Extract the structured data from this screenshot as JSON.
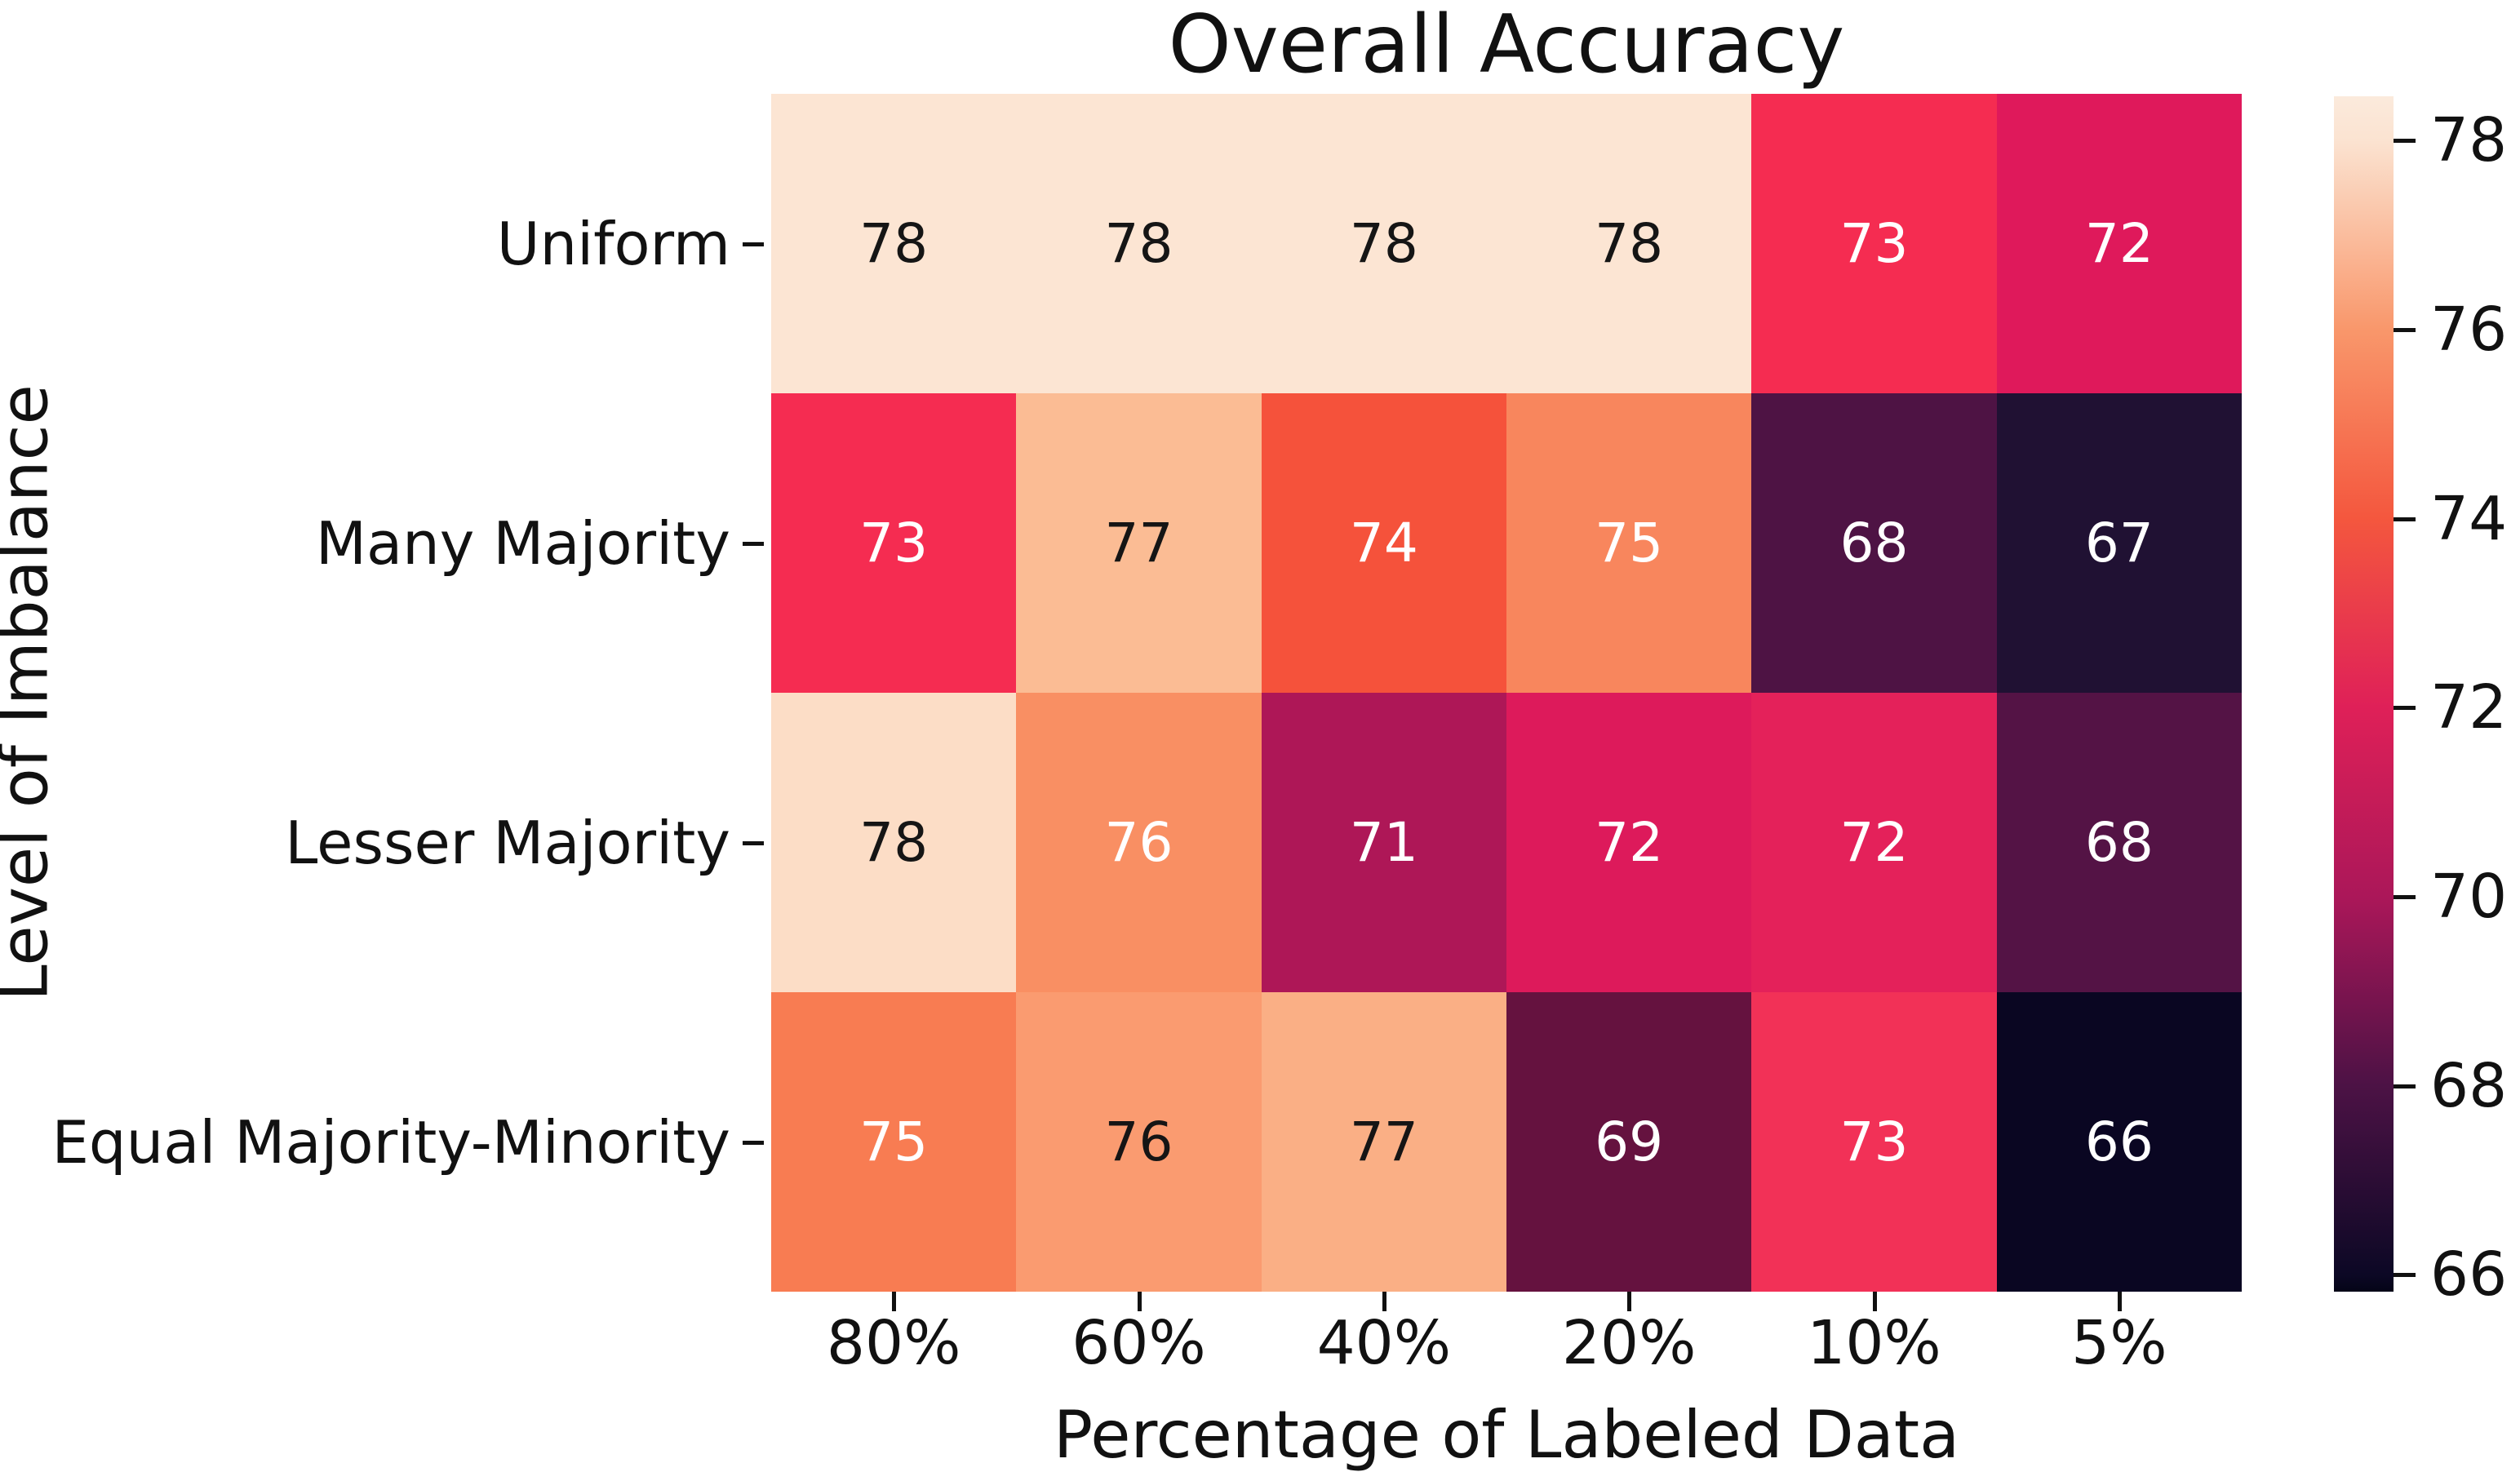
{
  "title": "Overall Accuracy",
  "chart_data": {
    "type": "heatmap",
    "title": "Overall Accuracy",
    "xlabel": "Percentage of Labeled Data",
    "ylabel": "Level of Imbalance",
    "x_categories": [
      "80%",
      "60%",
      "40%",
      "20%",
      "10%",
      "5%"
    ],
    "y_categories": [
      "Uniform",
      "Many Majority",
      "Lesser Majority",
      "Equal Majority-Minority"
    ],
    "values": [
      [
        78,
        78,
        78,
        78,
        73,
        72
      ],
      [
        73,
        77,
        74,
        75,
        68,
        67
      ],
      [
        78,
        76,
        71,
        72,
        72,
        68
      ],
      [
        75,
        76,
        77,
        69,
        73,
        66
      ]
    ],
    "cell_colors": [
      [
        "#FCE5D3",
        "#FCE5D3",
        "#FCE5D3",
        "#FCE5D3",
        "#F52C51",
        "#DF195B"
      ],
      [
        "#F52C51",
        "#FBBC94",
        "#F5523B",
        "#F8865D",
        "#4E1344",
        "#201133"
      ],
      [
        "#FCDDC6",
        "#F98F63",
        "#AE1757",
        "#DD1A5B",
        "#E4215A",
        "#541345"
      ],
      [
        "#F87C52",
        "#FA9B70",
        "#FAAF85",
        "#65123F",
        "#F23157",
        "#0A0622"
      ]
    ],
    "text_colors": [
      [
        "dark",
        "dark",
        "dark",
        "dark",
        "white",
        "white"
      ],
      [
        "white",
        "dark",
        "white",
        "white",
        "white",
        "white"
      ],
      [
        "dark",
        "white",
        "white",
        "white",
        "white",
        "white"
      ],
      [
        "white",
        "dark",
        "dark",
        "white",
        "white",
        "white"
      ]
    ],
    "annotation_dark_color": "#151515",
    "annotation_light_color": "#ffffff",
    "grid": false,
    "colorbar": {
      "colormap": "rocket",
      "ticks": [
        78,
        76,
        74,
        72,
        70,
        68,
        66
      ],
      "range_bottom": 65.82,
      "range_top": 78.47,
      "gradient": [
        {
          "p": 0,
          "c": "#FBEADC"
        },
        {
          "p": 3.7,
          "c": "#FBE3D1"
        },
        {
          "p": 19.5,
          "c": "#F9976B"
        },
        {
          "p": 35.3,
          "c": "#F4573E"
        },
        {
          "p": 51.1,
          "c": "#DF2058"
        },
        {
          "p": 67.0,
          "c": "#AB1759"
        },
        {
          "p": 82.8,
          "c": "#4C1245"
        },
        {
          "p": 98.6,
          "c": "#0C0825"
        },
        {
          "p": 100,
          "c": "#040417"
        }
      ]
    }
  }
}
